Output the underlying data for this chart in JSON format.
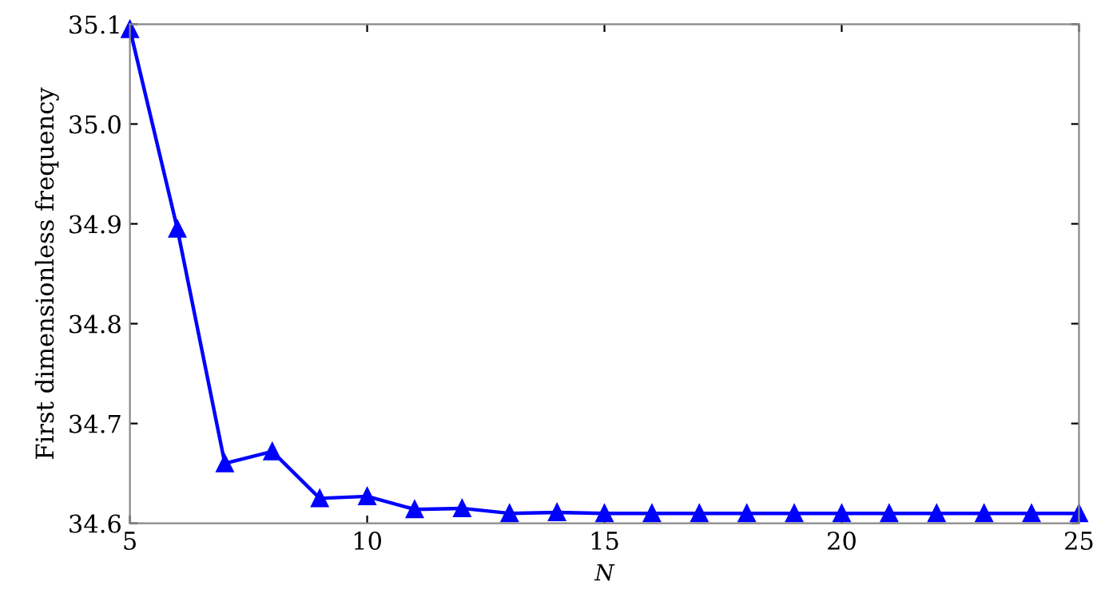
{
  "chart_data": {
    "type": "line",
    "xlabel": "N",
    "ylabel": "First dimensionless frequency",
    "x": [
      5,
      6,
      7,
      8,
      9,
      10,
      11,
      12,
      13,
      14,
      15,
      16,
      17,
      18,
      19,
      20,
      21,
      22,
      23,
      24,
      25
    ],
    "series": [
      {
        "color": "#0000ff",
        "values": [
          35.095,
          34.895,
          34.66,
          34.672,
          34.625,
          34.627,
          34.614,
          34.615,
          34.61,
          34.611,
          34.61,
          34.61,
          34.61,
          34.61,
          34.61,
          34.61,
          34.61,
          34.61,
          34.61,
          34.61,
          34.61
        ]
      }
    ],
    "xlim": [
      5,
      25
    ],
    "xticks": [
      5,
      10,
      15,
      20,
      25
    ],
    "ylim": [
      34.6,
      35.1
    ],
    "yticks": [
      {
        "value": 34.6,
        "label": "34.6"
      },
      {
        "value": 34.7,
        "label": "34.7"
      },
      {
        "value": 34.8,
        "label": "34.8"
      },
      {
        "value": 34.9,
        "label": "34.9"
      },
      {
        "value": 35.0,
        "label": "35.0"
      },
      {
        "value": 35.1,
        "label": "35.1"
      }
    ],
    "marker": "triangle",
    "line_style": "solid",
    "grid": false
  }
}
